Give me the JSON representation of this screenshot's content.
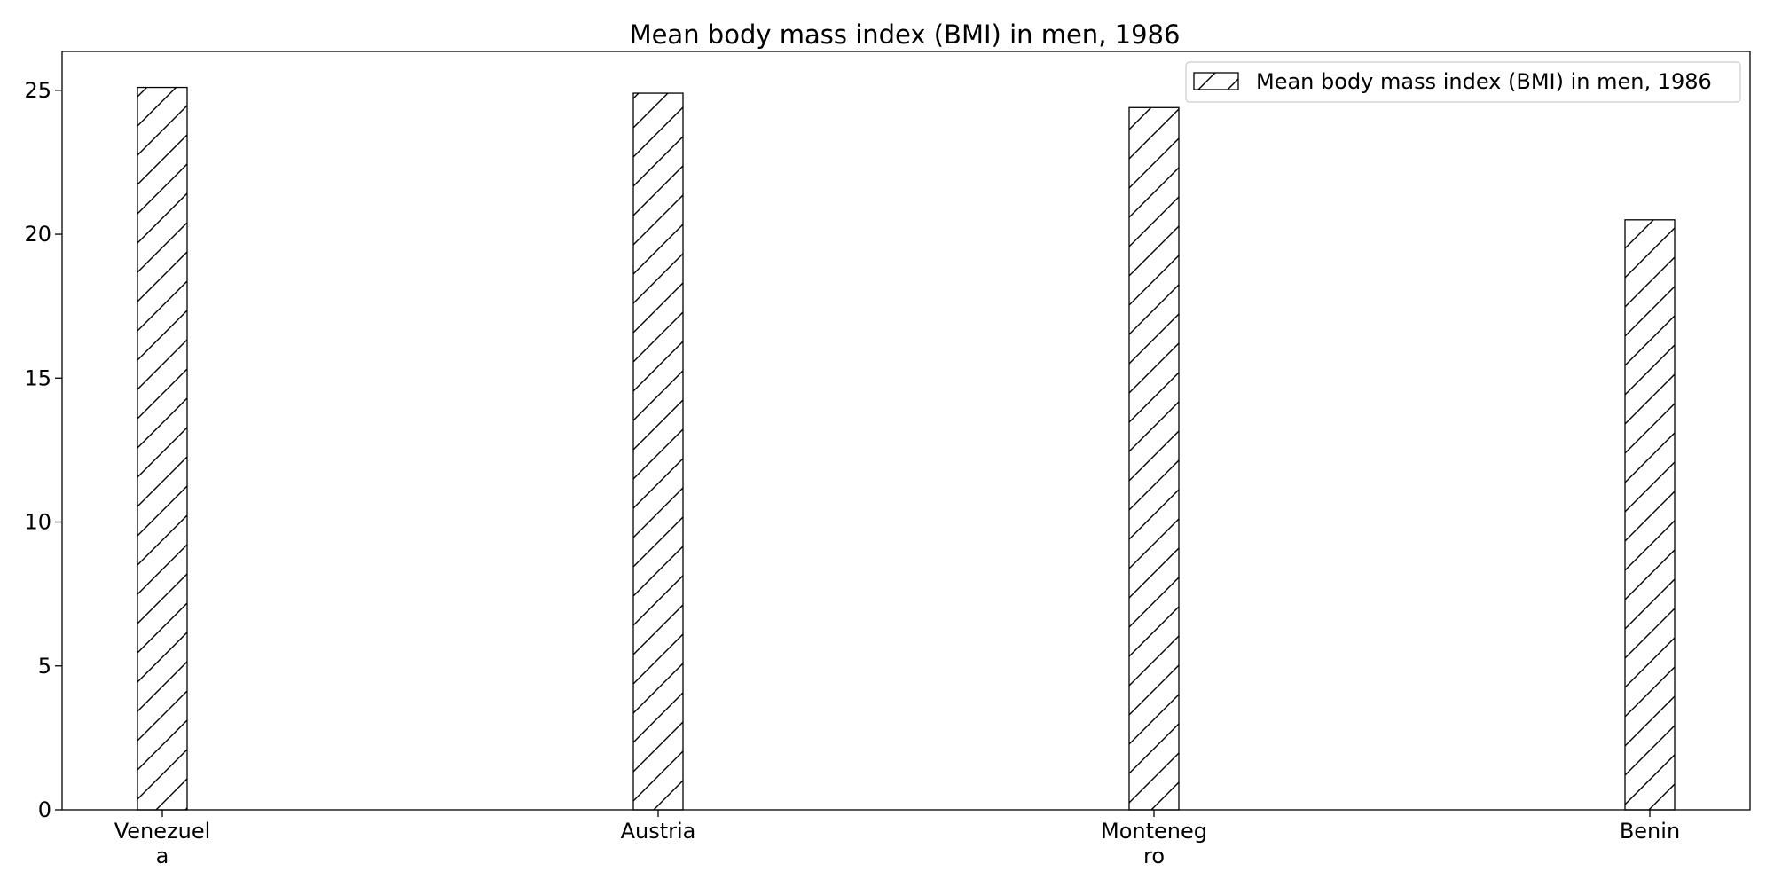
{
  "chart_data": {
    "type": "bar",
    "title": "Mean body mass index (BMI) in men, 1986",
    "xlabel": "",
    "ylabel": "",
    "categories": [
      "Venezuela",
      "Austria",
      "Montenegro",
      "Benin"
    ],
    "category_tick_lines": [
      [
        "Venezuel",
        "a"
      ],
      [
        "Austria"
      ],
      [
        "Monteneg",
        "ro"
      ],
      [
        "Benin"
      ]
    ],
    "series": [
      {
        "name": "Mean body mass index (BMI) in men, 1986",
        "values": [
          25.1,
          24.9,
          24.4,
          20.5
        ],
        "fill": "#ffffff",
        "edge": "#000000",
        "hatch": "/"
      }
    ],
    "ylim": [
      0,
      26.35
    ],
    "yticks": [
      0,
      5,
      10,
      15,
      20,
      25
    ],
    "grid": false,
    "legend_position": "top-right"
  }
}
